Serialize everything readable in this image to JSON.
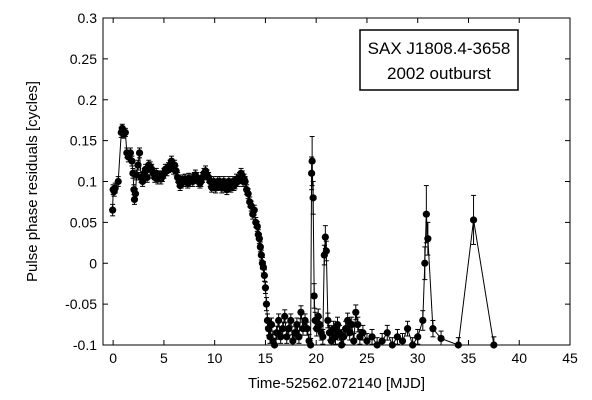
{
  "chart_data": {
    "type": "line",
    "title": "",
    "annotation": [
      "SAX J1808.4-3658",
      "2002 outburst"
    ],
    "xlabel": "Time-52562.072140 [MJD]",
    "ylabel": "Pulse phase residuals [cycles]",
    "xlim": [
      -1,
      45
    ],
    "ylim": [
      -0.1,
      0.3
    ],
    "xticks": [
      0,
      5,
      10,
      15,
      20,
      25,
      30,
      35,
      40,
      45
    ],
    "yticks": [
      -0.1,
      -0.05,
      0,
      0.05,
      0.1,
      0.15,
      0.2,
      0.25,
      0.3
    ],
    "xtick_labels": [
      "0",
      "5",
      "10",
      "15",
      "20",
      "25",
      "30",
      "35",
      "40",
      "45"
    ],
    "ytick_labels": [
      "-0.1",
      "-0.05",
      "0",
      "0.05",
      "0.1",
      "0.15",
      "0.2",
      "0.25",
      "0.3"
    ],
    "grid": false,
    "marker": "filled-circle",
    "series": [
      {
        "points": [
          [
            -0.05,
            0.065,
            0.007
          ],
          [
            0.0,
            0.09,
            0.006
          ],
          [
            0.1,
            0.088,
            0.006
          ],
          [
            0.2,
            0.092,
            0.006
          ],
          [
            0.5,
            0.1,
            0.006
          ],
          [
            0.8,
            0.16,
            0.006
          ],
          [
            0.9,
            0.165,
            0.005
          ],
          [
            1.05,
            0.158,
            0.005
          ],
          [
            1.2,
            0.16,
            0.005
          ],
          [
            1.35,
            0.135,
            0.006
          ],
          [
            1.5,
            0.13,
            0.006
          ],
          [
            1.7,
            0.135,
            0.006
          ],
          [
            1.85,
            0.125,
            0.006
          ],
          [
            1.95,
            0.11,
            0.006
          ],
          [
            2.05,
            0.09,
            0.006
          ],
          [
            2.1,
            0.078,
            0.006
          ],
          [
            2.2,
            0.085,
            0.006
          ],
          [
            2.3,
            0.108,
            0.006
          ],
          [
            2.45,
            0.12,
            0.006
          ],
          [
            2.6,
            0.135,
            0.006
          ],
          [
            2.75,
            0.105,
            0.006
          ],
          [
            2.9,
            0.1,
            0.006
          ],
          [
            3.05,
            0.11,
            0.006
          ],
          [
            3.2,
            0.115,
            0.006
          ],
          [
            3.35,
            0.105,
            0.006
          ],
          [
            3.5,
            0.12,
            0.006
          ],
          [
            3.65,
            0.118,
            0.006
          ],
          [
            3.8,
            0.115,
            0.006
          ],
          [
            3.95,
            0.11,
            0.006
          ],
          [
            4.1,
            0.105,
            0.006
          ],
          [
            4.25,
            0.11,
            0.006
          ],
          [
            4.4,
            0.103,
            0.006
          ],
          [
            4.55,
            0.107,
            0.006
          ],
          [
            4.7,
            0.103,
            0.006
          ],
          [
            4.85,
            0.106,
            0.006
          ],
          [
            5.0,
            0.11,
            0.006
          ],
          [
            5.15,
            0.115,
            0.006
          ],
          [
            5.3,
            0.113,
            0.006
          ],
          [
            5.45,
            0.117,
            0.006
          ],
          [
            5.6,
            0.12,
            0.006
          ],
          [
            5.75,
            0.125,
            0.006
          ],
          [
            5.85,
            0.118,
            0.006
          ],
          [
            5.95,
            0.115,
            0.006
          ],
          [
            6.05,
            0.12,
            0.006
          ],
          [
            6.2,
            0.113,
            0.006
          ],
          [
            6.35,
            0.105,
            0.006
          ],
          [
            6.5,
            0.1,
            0.006
          ],
          [
            6.6,
            0.095,
            0.006
          ],
          [
            6.7,
            0.098,
            0.006
          ],
          [
            6.8,
            0.102,
            0.006
          ],
          [
            6.95,
            0.1,
            0.006
          ],
          [
            7.1,
            0.103,
            0.006
          ],
          [
            7.2,
            0.1,
            0.006
          ],
          [
            7.35,
            0.098,
            0.006
          ],
          [
            7.45,
            0.104,
            0.006
          ],
          [
            7.6,
            0.1,
            0.006
          ],
          [
            7.75,
            0.103,
            0.006
          ],
          [
            7.85,
            0.1,
            0.006
          ],
          [
            8.0,
            0.105,
            0.006
          ],
          [
            8.1,
            0.108,
            0.006
          ],
          [
            8.25,
            0.105,
            0.006
          ],
          [
            8.4,
            0.1,
            0.006
          ],
          [
            8.55,
            0.098,
            0.006
          ],
          [
            8.65,
            0.1,
            0.006
          ],
          [
            8.8,
            0.105,
            0.006
          ],
          [
            8.95,
            0.11,
            0.006
          ],
          [
            9.1,
            0.113,
            0.006
          ],
          [
            9.25,
            0.108,
            0.006
          ],
          [
            9.4,
            0.105,
            0.006
          ],
          [
            9.55,
            0.1,
            0.006
          ],
          [
            9.7,
            0.093,
            0.006
          ],
          [
            9.8,
            0.095,
            0.006
          ],
          [
            9.9,
            0.1,
            0.006
          ],
          [
            10.0,
            0.096,
            0.006
          ],
          [
            10.1,
            0.092,
            0.006
          ],
          [
            10.2,
            0.095,
            0.006
          ],
          [
            10.3,
            0.1,
            0.006
          ],
          [
            10.4,
            0.097,
            0.006
          ],
          [
            10.5,
            0.1,
            0.006
          ],
          [
            10.6,
            0.096,
            0.006
          ],
          [
            10.7,
            0.092,
            0.006
          ],
          [
            10.8,
            0.095,
            0.006
          ],
          [
            10.9,
            0.1,
            0.006
          ],
          [
            11.0,
            0.097,
            0.006
          ],
          [
            11.1,
            0.093,
            0.006
          ],
          [
            11.2,
            0.09,
            0.006
          ],
          [
            11.3,
            0.094,
            0.006
          ],
          [
            11.4,
            0.1,
            0.006
          ],
          [
            11.5,
            0.097,
            0.006
          ],
          [
            11.6,
            0.093,
            0.006
          ],
          [
            11.7,
            0.096,
            0.006
          ],
          [
            11.8,
            0.1,
            0.006
          ],
          [
            11.9,
            0.095,
            0.006
          ],
          [
            12.0,
            0.097,
            0.006
          ],
          [
            12.15,
            0.103,
            0.006
          ],
          [
            12.3,
            0.1,
            0.006
          ],
          [
            12.45,
            0.105,
            0.006
          ],
          [
            12.6,
            0.11,
            0.006
          ],
          [
            12.7,
            0.107,
            0.006
          ],
          [
            12.8,
            0.1,
            0.006
          ],
          [
            12.9,
            0.103,
            0.006
          ],
          [
            13.0,
            0.1,
            0.006
          ],
          [
            13.15,
            0.09,
            0.006
          ],
          [
            13.3,
            0.085,
            0.006
          ],
          [
            13.45,
            0.075,
            0.006
          ],
          [
            13.6,
            0.07,
            0.006
          ],
          [
            13.75,
            0.06,
            0.006
          ],
          [
            13.9,
            0.065,
            0.006
          ],
          [
            14.05,
            0.05,
            0.006
          ],
          [
            14.2,
            0.045,
            0.006
          ],
          [
            14.3,
            0.035,
            0.006
          ],
          [
            14.4,
            0.03,
            0.006
          ],
          [
            14.5,
            0.02,
            0.006
          ],
          [
            14.6,
            0.01,
            0.006
          ],
          [
            14.7,
            0.0,
            0.007
          ],
          [
            14.8,
            -0.005,
            0.007
          ],
          [
            14.9,
            -0.015,
            0.007
          ],
          [
            15.0,
            -0.03,
            0.007
          ],
          [
            15.1,
            -0.05,
            0.008
          ],
          [
            15.2,
            -0.07,
            0.008
          ],
          [
            15.3,
            -0.08,
            0.008
          ],
          [
            15.45,
            -0.09,
            0.008
          ],
          [
            15.6,
            -0.075,
            0.008
          ],
          [
            15.75,
            -0.095,
            0.008
          ],
          [
            15.9,
            -0.1,
            0.008
          ],
          [
            16.1,
            -0.085,
            0.008
          ],
          [
            16.3,
            -0.07,
            0.008
          ],
          [
            16.5,
            -0.09,
            0.008
          ],
          [
            16.7,
            -0.08,
            0.008
          ],
          [
            16.9,
            -0.065,
            0.008
          ],
          [
            17.1,
            -0.09,
            0.008
          ],
          [
            17.3,
            -0.08,
            0.008
          ],
          [
            17.5,
            -0.07,
            0.008
          ],
          [
            17.7,
            -0.095,
            0.008
          ],
          [
            17.9,
            -0.085,
            0.008
          ],
          [
            18.1,
            -0.075,
            0.008
          ],
          [
            18.3,
            -0.09,
            0.008
          ],
          [
            18.5,
            -0.06,
            0.008
          ],
          [
            18.7,
            -0.08,
            0.008
          ],
          [
            18.9,
            -0.07,
            0.008
          ],
          [
            19.1,
            -0.08,
            0.008
          ],
          [
            19.3,
            -0.095,
            0.008
          ],
          [
            19.45,
            -0.1,
            0.008
          ],
          [
            19.55,
            0.11,
            0.02
          ],
          [
            19.6,
            0.125,
            0.03
          ],
          [
            19.7,
            0.08,
            0.02
          ],
          [
            19.8,
            -0.04,
            0.015
          ],
          [
            19.9,
            -0.07,
            0.01
          ],
          [
            20.05,
            -0.08,
            0.009
          ],
          [
            20.2,
            -0.065,
            0.009
          ],
          [
            20.35,
            -0.075,
            0.009
          ],
          [
            20.5,
            -0.085,
            0.009
          ],
          [
            20.65,
            -0.09,
            0.009
          ],
          [
            20.8,
            0.01,
            0.012
          ],
          [
            20.9,
            0.032,
            0.014
          ],
          [
            21.0,
            0.015,
            0.012
          ],
          [
            21.15,
            -0.07,
            0.009
          ],
          [
            21.3,
            -0.085,
            0.009
          ],
          [
            21.5,
            -0.095,
            0.009
          ],
          [
            21.7,
            -0.08,
            0.009
          ],
          [
            21.9,
            -0.09,
            0.009
          ],
          [
            22.1,
            -0.075,
            0.009
          ],
          [
            22.3,
            -0.085,
            0.009
          ],
          [
            22.5,
            -0.1,
            0.009
          ],
          [
            22.7,
            -0.09,
            0.009
          ],
          [
            22.9,
            -0.08,
            0.009
          ],
          [
            23.1,
            -0.07,
            0.009
          ],
          [
            23.3,
            -0.085,
            0.009
          ],
          [
            23.5,
            -0.075,
            0.009
          ],
          [
            23.7,
            -0.095,
            0.009
          ],
          [
            23.9,
            -0.06,
            0.009
          ],
          [
            24.1,
            -0.075,
            0.009
          ],
          [
            24.3,
            -0.09,
            0.009
          ],
          [
            24.6,
            -0.085,
            0.009
          ],
          [
            25.0,
            -0.095,
            0.009
          ],
          [
            25.5,
            -0.09,
            0.009
          ],
          [
            26.0,
            -0.1,
            0.009
          ],
          [
            26.5,
            -0.095,
            0.009
          ],
          [
            27.0,
            -0.085,
            0.009
          ],
          [
            27.5,
            -0.1,
            0.009
          ],
          [
            28.0,
            -0.09,
            0.009
          ],
          [
            28.5,
            -0.095,
            0.009
          ],
          [
            29.0,
            -0.08,
            0.009
          ],
          [
            29.5,
            -0.1,
            0.009
          ],
          [
            30.0,
            -0.09,
            0.009
          ],
          [
            30.5,
            -0.07,
            0.012
          ],
          [
            30.7,
            0.0,
            0.02
          ],
          [
            30.85,
            0.06,
            0.035
          ],
          [
            31.0,
            0.03,
            0.02
          ],
          [
            31.5,
            -0.08,
            0.01
          ],
          [
            32.3,
            -0.092,
            0.009
          ],
          [
            34.0,
            -0.1,
            0.009
          ],
          [
            35.5,
            0.053,
            0.03
          ],
          [
            37.5,
            -0.1,
            0.01
          ]
        ]
      }
    ]
  }
}
